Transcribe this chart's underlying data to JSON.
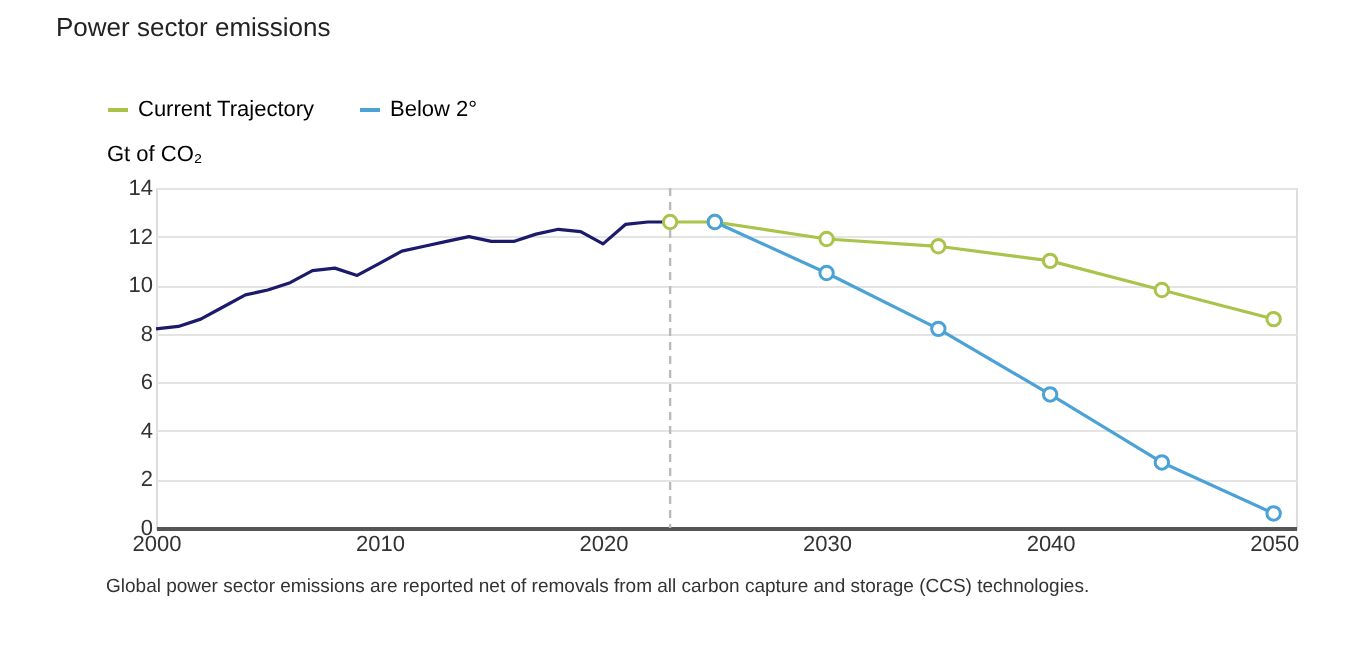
{
  "chart_data": {
    "type": "line",
    "title": "Power sector emissions",
    "ylabel": "Gt of CO₂",
    "series": [
      {
        "color": "#1c1a6b",
        "marker": "none",
        "x": [
          2000,
          2001,
          2002,
          2003,
          2004,
          2005,
          2006,
          2007,
          2008,
          2009,
          2010,
          2011,
          2012,
          2013,
          2014,
          2015,
          2016,
          2017,
          2018,
          2019,
          2020,
          2021,
          2022,
          2023
        ],
        "values": [
          8.2,
          8.3,
          8.6,
          9.1,
          9.6,
          9.8,
          10.1,
          10.6,
          10.7,
          10.4,
          10.9,
          11.4,
          11.6,
          11.8,
          12.0,
          11.8,
          11.8,
          12.1,
          12.3,
          12.2,
          11.7,
          12.5,
          12.6,
          12.6
        ]
      },
      {
        "name": "Current Trajectory",
        "color": "#a8c44a",
        "marker": "circle",
        "x": [
          2023,
          2025,
          2030,
          2035,
          2040,
          2045,
          2050
        ],
        "values": [
          12.6,
          12.6,
          11.9,
          11.6,
          11.0,
          9.8,
          8.6
        ]
      },
      {
        "name": "Below 2°",
        "color": "#4ba2d6",
        "marker": "circle",
        "x": [
          2025,
          2030,
          2035,
          2040,
          2045,
          2050
        ],
        "values": [
          12.6,
          10.5,
          8.2,
          5.5,
          2.7,
          0.6
        ]
      }
    ],
    "xlim": [
      2000,
      2051
    ],
    "xticks": [
      2000,
      2010,
      2020,
      2030,
      2040,
      2050
    ],
    "ylim": [
      0,
      14
    ],
    "yticks": [
      0,
      2,
      4,
      6,
      8,
      10,
      12,
      14
    ],
    "grid": "y",
    "legend": "top left",
    "ref_lines": [
      {
        "axis": "x",
        "value": 2023,
        "color": "#bbbbbb",
        "line_style": "dashed"
      }
    ],
    "annotations": [
      "Global power sector emissions are reported net of removals from all carbon capture and storage (CCS) technologies."
    ]
  }
}
